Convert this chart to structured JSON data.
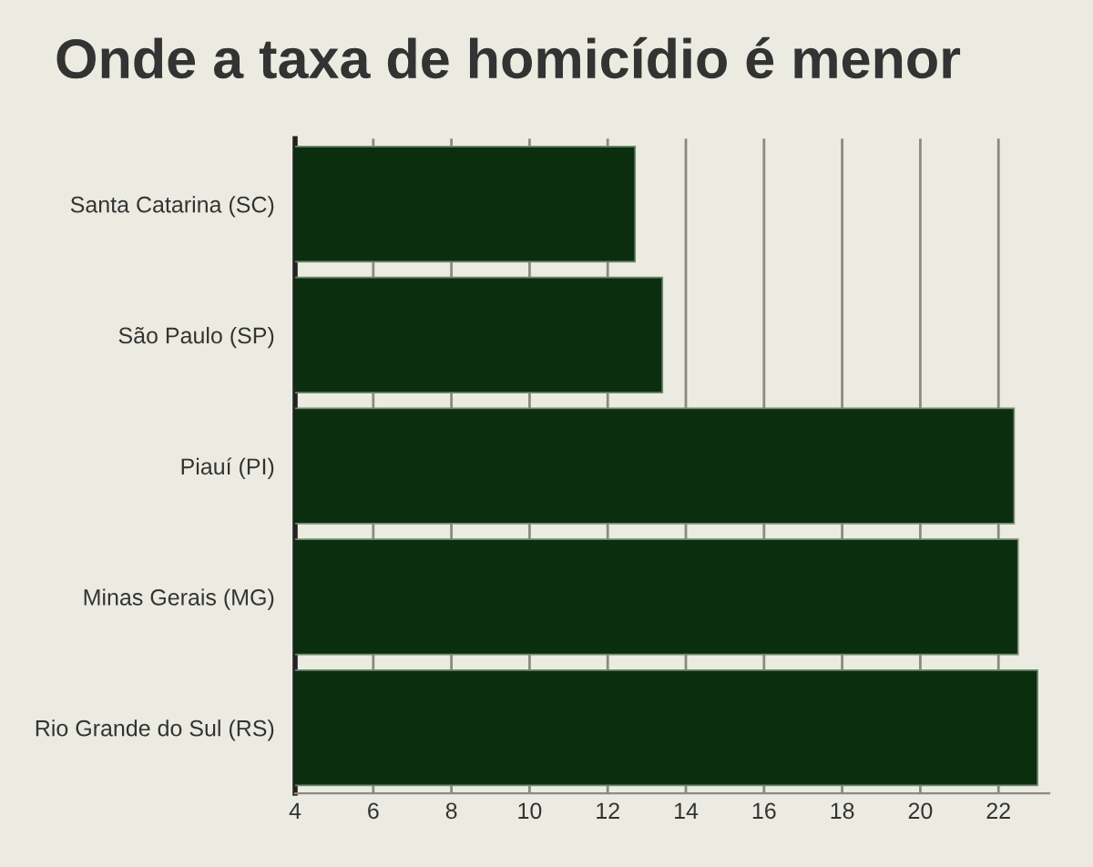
{
  "chart_data": {
    "type": "bar",
    "orientation": "horizontal",
    "title": "Onde a taxa de homicídio é menor",
    "categories": [
      "Santa Catarina (SC)",
      "São Paulo (SP)",
      "Piauí (PI)",
      "Minas Gerais (MG)",
      "Rio Grande do Sul (RS)"
    ],
    "values": [
      12.7,
      13.4,
      22.4,
      22.5,
      23.0
    ],
    "color": "#0a2e0e",
    "xlim": [
      4,
      23.3
    ],
    "xticks": [
      4,
      6,
      8,
      10,
      12,
      14,
      16,
      18,
      20,
      22
    ],
    "grid": "x"
  }
}
